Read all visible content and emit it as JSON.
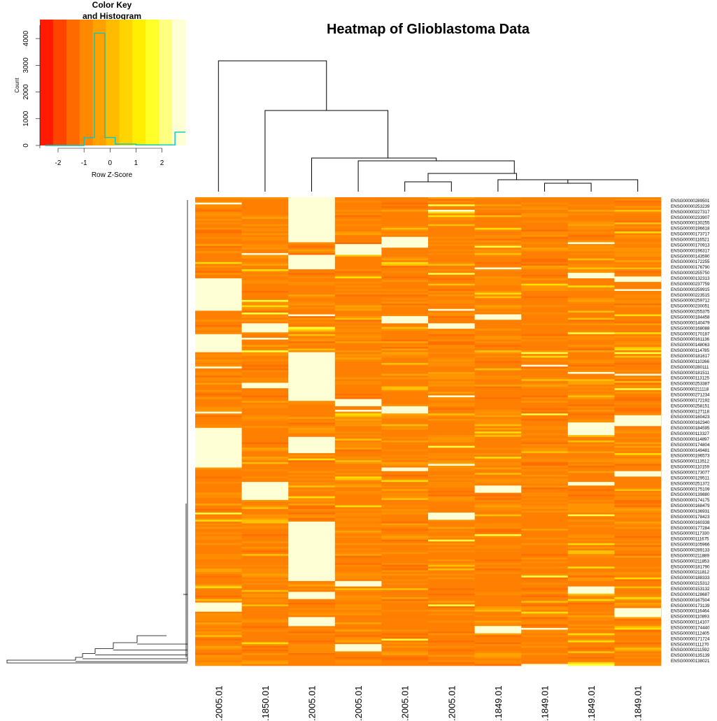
{
  "title": "Heatmap of Glioblastoma Data",
  "color_key": {
    "title_line1": "Color Key",
    "title_line2": "and Histogram",
    "xlabel": "Row Z-Score",
    "ylabel": "Count",
    "x_ticks": [
      "-2",
      "-1",
      "0",
      "1",
      "2"
    ],
    "y_ticks": [
      "0",
      "1000",
      "2000",
      "3000",
      "4000"
    ],
    "gradient_colors": [
      "#ff1a00",
      "#ff4400",
      "#ff6a00",
      "#ff8800",
      "#ffa200",
      "#ffbb00",
      "#ffd400",
      "#ffee00",
      "#ffff2a",
      "#ffff80",
      "#ffffd4"
    ],
    "histogram_color": "#00c8c8"
  },
  "chart_data": {
    "type": "heatmap",
    "title": "Heatmap of Glioblastoma Data",
    "columns": [
      ".2005.01",
      ".1850.01",
      ".2005.01",
      ".2005.01",
      ".2005.01",
      ".2005.01",
      ".1849.01",
      ".1849.01",
      ".1849.01",
      ".1849.01"
    ],
    "row_labels": [
      "ENSG00000289501",
      "ENSG00000253239",
      "ENSG00000227317",
      "ENSG00000233907",
      "ENSG00000130255",
      "ENSG00000196618",
      "ENSG00000173717",
      "ENSG00000116521",
      "ENSG00000170913",
      "ENSG00000196317",
      "ENSG00000143590",
      "ENSG00000172255",
      "ENSG00000176790",
      "ENSG00000255750",
      "ENSG00000132313",
      "ENSG00000237759",
      "ENSG00000259915",
      "ENSG00000223515",
      "ENSG00000259712",
      "ENSG00000230051",
      "ENSG00000255375",
      "ENSG00000184458",
      "ENSG00000140479",
      "ENSG00000168088",
      "ENSG00000170187",
      "ENSG00000161136",
      "ENSG00000148063",
      "ENSG00000114785",
      "ENSG00000181617",
      "ENSG00000110266",
      "ENSG00000280111",
      "ENSG00000181511",
      "ENSG00000113125",
      "ENSG00000253387",
      "ENSG00000211118",
      "ENSG00000271234",
      "ENSG00000172192",
      "ENSG00000258151",
      "ENSG00000127118",
      "ENSG00000160423",
      "ENSG00000162340",
      "ENSG00000184595",
      "ENSG00000113327",
      "ENSG00000114897",
      "ENSG00000174804",
      "ENSG00000149481",
      "ENSG00000196573",
      "ENSG00000113512",
      "ENSG00000110159",
      "ENSG00000173077",
      "ENSG00000129511",
      "ENSG00000251372",
      "ENSG00000175109",
      "ENSG00000139880",
      "ENSG00000174175",
      "ENSG00000168479",
      "ENSG00000136931",
      "ENSG00000178423",
      "ENSG00000160338",
      "ENSG00000177284",
      "ENSG00000117330",
      "ENSG00000111675",
      "ENSG00000105966",
      "ENSG00000289133",
      "ENSG00000211889",
      "ENSG00000211853",
      "ENSG00000181790",
      "ENSG00000211812",
      "ENSG00000188333",
      "ENSG00000215312",
      "ENSG00000153132",
      "ENSG00000128687",
      "ENSG00000167504",
      "ENSG00000173139",
      "ENSG00000116464",
      "ENSG00000110893",
      "ENSG00000114107",
      "ENSG00000174440",
      "ENSG00000112405",
      "ENSG00000171724",
      "ENSG00000111270",
      "ENSG00000211592",
      "ENSG00000135139",
      "ENSG00000138021"
    ],
    "color_key_xlim": [
      -2.7,
      2.9
    ],
    "histogram": {
      "bins": [
        -2.5,
        -1.25,
        -1.0,
        -0.6,
        -0.2,
        0.2,
        1.0,
        2.0,
        2.5,
        2.9
      ],
      "counts": [
        0,
        0,
        300,
        4200,
        300,
        50,
        20,
        20,
        500
      ]
    },
    "hist_ylim": [
      0,
      4500
    ]
  }
}
